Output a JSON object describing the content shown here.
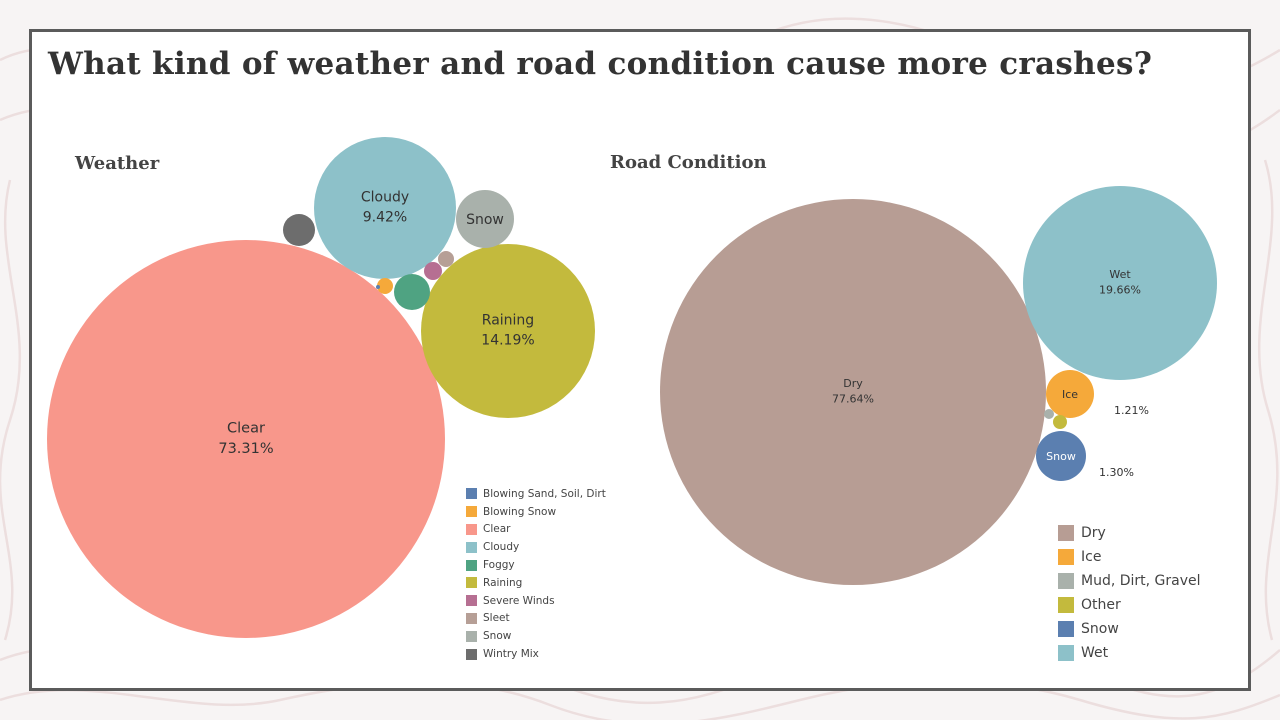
{
  "title": "What kind of weather and road condition cause more crashes?",
  "colors": {
    "Blowing Sand, Soil, Dirt": "#5b7fb0",
    "Blowing Snow": "#f5a93a",
    "Clear": "#f8978b",
    "Cloudy": "#8dc1c9",
    "Foggy": "#4fa382",
    "Raining": "#c3ba3d",
    "Severe Winds": "#b66f92",
    "Sleet": "#b69f96",
    "Snow": "#a9b1ab",
    "Wintry Mix": "#6d6d6d",
    "Dry": "#b79d94",
    "Ice": "#f5a93a",
    "Mud, Dirt, Gravel": "#a9b1ab",
    "Other": "#c3ba3d",
    "Wet": "#8dc1c9",
    "Road Snow": "#5b7fb0"
  },
  "chart_data": [
    {
      "type": "bubble",
      "title": "Weather",
      "legend_position": "bottom-right",
      "legend": [
        "Blowing Sand, Soil, Dirt",
        "Blowing Snow",
        "Clear",
        "Cloudy",
        "Foggy",
        "Raining",
        "Severe Winds",
        "Sleet",
        "Snow",
        "Wintry Mix"
      ],
      "bubbles": [
        {
          "category": "Clear",
          "value": 73.31,
          "label": "Clear",
          "value_label": "73.31%"
        },
        {
          "category": "Raining",
          "value": 14.19,
          "label": "Raining",
          "value_label": "14.19%"
        },
        {
          "category": "Cloudy",
          "value": 9.42,
          "label": "Cloudy",
          "value_label": "9.42%"
        },
        {
          "category": "Snow",
          "value": 1.5,
          "label": "Snow",
          "value_label": ""
        },
        {
          "category": "Wintry Mix",
          "value": 0.72,
          "label": "",
          "value_label": ""
        },
        {
          "category": "Foggy",
          "value": 0.9,
          "label": "",
          "value_label": ""
        },
        {
          "category": "Severe Winds",
          "value": 0.25,
          "label": "",
          "value_label": ""
        },
        {
          "category": "Sleet",
          "value": 0.2,
          "label": "",
          "value_label": ""
        },
        {
          "category": "Blowing Snow",
          "value": 0.18,
          "label": "",
          "value_label": ""
        },
        {
          "category": "Blowing Sand, Soil, Dirt",
          "value": 0.02,
          "label": "",
          "value_label": ""
        }
      ]
    },
    {
      "type": "bubble",
      "title": "Road Condition",
      "legend_position": "bottom-right",
      "legend": [
        "Dry",
        "Ice",
        "Mud, Dirt, Gravel",
        "Other",
        "Snow",
        "Wet"
      ],
      "bubbles": [
        {
          "category": "Dry",
          "value": 77.64,
          "label": "Dry",
          "value_label": "77.64%"
        },
        {
          "category": "Wet",
          "value": 19.66,
          "label": "Wet",
          "value_label": "19.66%"
        },
        {
          "category": "Snow",
          "value": 1.3,
          "label": "Snow",
          "value_label": "1.30%"
        },
        {
          "category": "Ice",
          "value": 1.21,
          "label": "Ice",
          "value_label": "1.21%"
        },
        {
          "category": "Other",
          "value": 0.13,
          "label": "",
          "value_label": ""
        },
        {
          "category": "Mud, Dirt, Gravel",
          "value": 0.06,
          "label": "",
          "value_label": ""
        }
      ]
    }
  ]
}
